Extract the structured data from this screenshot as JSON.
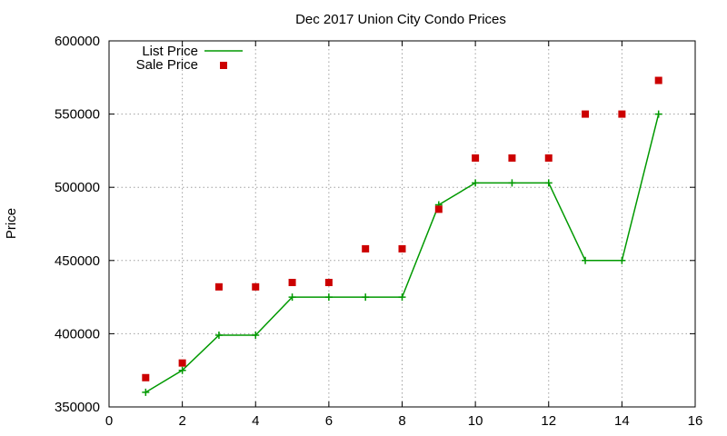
{
  "chart_data": {
    "type": "line",
    "title": "Dec 2017 Union City Condo Prices",
    "xlabel": "",
    "ylabel": "Price",
    "xlim": [
      0,
      16
    ],
    "ylim": [
      350000,
      600000
    ],
    "x_ticks": [
      0,
      2,
      4,
      6,
      8,
      10,
      12,
      14,
      16
    ],
    "y_ticks": [
      350000,
      400000,
      450000,
      500000,
      550000,
      600000
    ],
    "grid": true,
    "legend_position": "top-left",
    "series": [
      {
        "name": "List Price",
        "style": "line+cross",
        "color": "#009900",
        "x": [
          1,
          2,
          3,
          4,
          5,
          6,
          7,
          8,
          9,
          10,
          11,
          12,
          13,
          14,
          15
        ],
        "y": [
          360000,
          375000,
          399000,
          399000,
          425000,
          425000,
          425000,
          425000,
          488000,
          503000,
          503000,
          503000,
          450000,
          450000,
          550000
        ]
      },
      {
        "name": "Sale Price",
        "style": "square-points",
        "color": "#cc0000",
        "x": [
          1,
          2,
          3,
          4,
          5,
          6,
          7,
          8,
          9,
          10,
          11,
          12,
          13,
          14,
          15
        ],
        "y": [
          370000,
          380000,
          432000,
          432000,
          435000,
          435000,
          458000,
          458000,
          485000,
          520000,
          520000,
          520000,
          550000,
          550000,
          573000
        ]
      }
    ]
  }
}
